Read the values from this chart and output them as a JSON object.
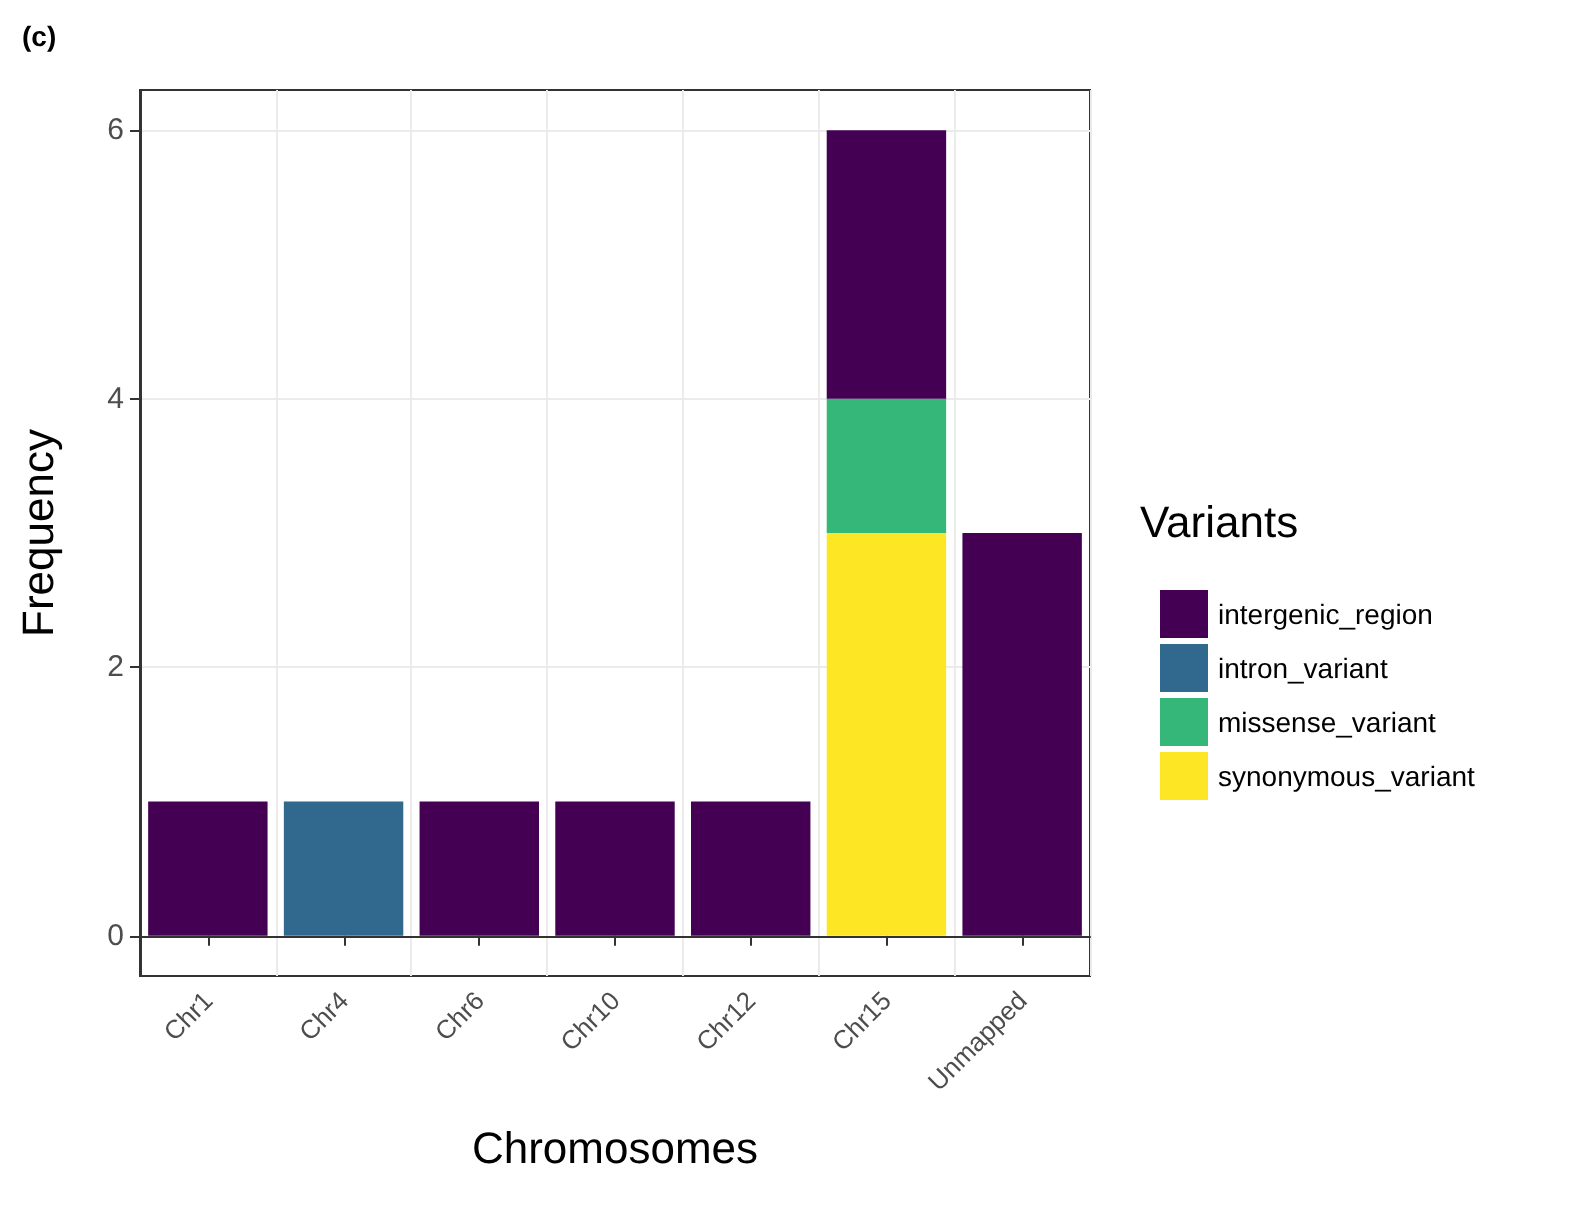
{
  "chart_data": {
    "type": "bar",
    "title": "(c)",
    "xlabel": "Chromosomes",
    "ylabel": "Frequency",
    "legend_title": "Variants",
    "categories": [
      "Chr1",
      "Chr4",
      "Chr6",
      "Chr10",
      "Chr12",
      "Chr15",
      "Unmapped"
    ],
    "stacked": true,
    "series": [
      {
        "name": "synonymous_variant",
        "color": "#fde725",
        "values": [
          null,
          null,
          null,
          null,
          null,
          3,
          null
        ]
      },
      {
        "name": "missense_variant",
        "color": "#35b779",
        "values": [
          null,
          null,
          null,
          null,
          null,
          1,
          null
        ]
      },
      {
        "name": "intron_variant",
        "color": "#31688e",
        "values": [
          null,
          1,
          null,
          null,
          null,
          null,
          null
        ]
      },
      {
        "name": "intergenic_region",
        "color": "#440154",
        "values": [
          1,
          null,
          1,
          1,
          1,
          2,
          3
        ]
      }
    ],
    "ylim": [
      -0.3,
      6.3
    ],
    "yticks": [
      0,
      2,
      4,
      6
    ],
    "grid": true,
    "legend": "right"
  }
}
